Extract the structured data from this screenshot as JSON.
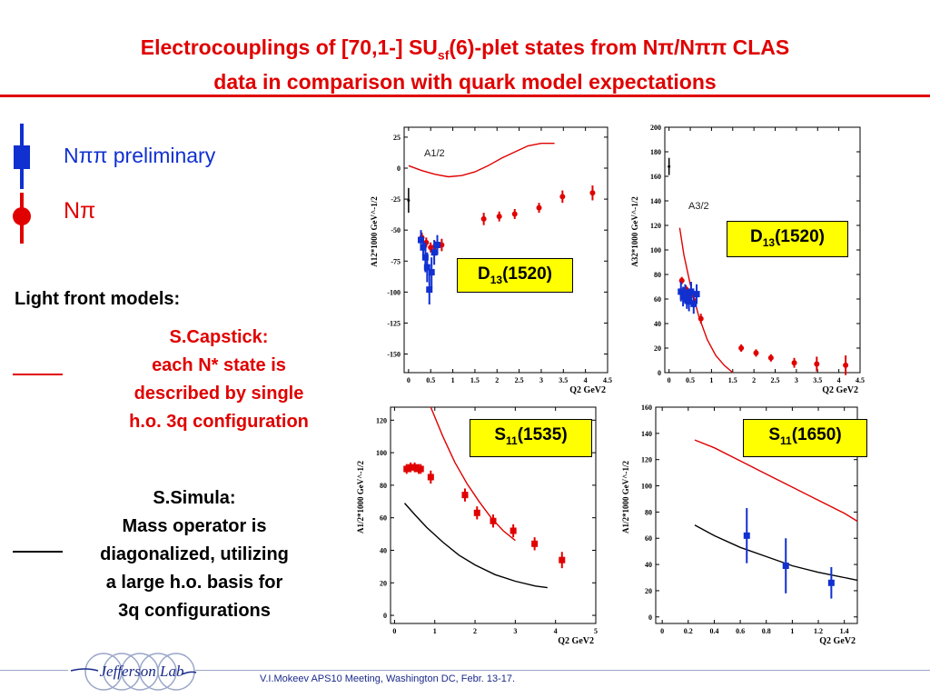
{
  "title": {
    "line1_a": "Electrocouplings of [70,1-] SU",
    "line1_sub": "sf",
    "line1_b": "(6)-plet states from Nπ/Nππ CLAS",
    "line2": "data in comparison with quark model expectations"
  },
  "legend": {
    "npipi": "Nππ preliminary",
    "npi": "Nπ"
  },
  "light_front": {
    "heading": "Light front models:",
    "capstick": [
      "S.Capstick:",
      "each N* state is",
      "described by single",
      "h.o. 3q configuration"
    ],
    "simula": [
      "S.Simula:",
      "Mass operator is",
      "diagonalized, utilizing",
      "a large h.o. basis for",
      "3q configurations"
    ]
  },
  "footer": {
    "text": "V.I.Mokeev   APS10 Meeting, Washington DC, Febr. 13-17.",
    "logo": "Jefferson Lab"
  },
  "colors": {
    "title": "#e00000",
    "npi": "#e00000",
    "npipi": "#1030d0",
    "model_capstick": "#e00000",
    "model_simula": "#000000",
    "state_box": "#ffff00"
  },
  "chart_data": [
    {
      "type": "scatter",
      "state_label": "D13(1520)",
      "state_name": "D",
      "state_sub": "13",
      "state_mass": "(1520)",
      "inset_label": "A1/2",
      "ylabel": "A12*1000 GeV^-1/2",
      "xlabel": "Q2 GeV2",
      "xlim": [
        -0.1,
        4.5
      ],
      "ylim": [
        -165,
        33
      ],
      "xticks": [
        0,
        0.5,
        1,
        1.5,
        2,
        2.5,
        3,
        3.5,
        4,
        4.5
      ],
      "xtick_labels": [
        "0",
        "0.5",
        "1",
        "1.5",
        "2",
        "2.5",
        "3",
        "3.5",
        "4",
        "4.5"
      ],
      "yticks": [
        25,
        0,
        -25,
        -50,
        -75,
        -100,
        -125,
        -150
      ],
      "ytick_labels": [
        "25",
        "0",
        "-25",
        "-50",
        "-75",
        "-100",
        "-125",
        "-150"
      ],
      "series": [
        {
          "name": "Nπ",
          "marker": "circle",
          "color": "#e00000",
          "points": [
            [
              0.3,
              -56,
              4
            ],
            [
              0.4,
              -60,
              4
            ],
            [
              0.5,
              -64,
              4
            ],
            [
              0.6,
              -63,
              4
            ],
            [
              0.75,
              -62,
              5
            ],
            [
              1.7,
              -41,
              5
            ],
            [
              2.05,
              -39,
              4
            ],
            [
              2.4,
              -37,
              4
            ],
            [
              2.95,
              -32,
              4
            ],
            [
              3.48,
              -23,
              5
            ],
            [
              4.16,
              -20,
              6
            ]
          ]
        },
        {
          "name": "Nππ",
          "marker": "square",
          "color": "#1030d0",
          "points": [
            [
              0.28,
              -58,
              8
            ],
            [
              0.33,
              -64,
              8
            ],
            [
              0.38,
              -72,
              12
            ],
            [
              0.42,
              -80,
              12
            ],
            [
              0.47,
              -98,
              12
            ],
            [
              0.52,
              -84,
              12
            ],
            [
              0.58,
              -68,
              10
            ],
            [
              0.65,
              -62,
              8
            ]
          ]
        },
        {
          "name": "",
          "marker": "dot",
          "color": "#000000",
          "points": [
            [
              0.0,
              -26,
              10
            ]
          ]
        }
      ],
      "curves": [
        {
          "name": "S.Capstick",
          "color": "#e00000",
          "x": [
            0,
            0.3,
            0.6,
            0.9,
            1.2,
            1.5,
            1.8,
            2.1,
            2.4,
            2.7,
            3.0,
            3.3
          ],
          "y": [
            2,
            -2,
            -5,
            -7,
            -6,
            -3,
            2,
            8,
            13,
            18,
            20,
            20
          ]
        }
      ]
    },
    {
      "type": "scatter",
      "state_label": "D13(1520)",
      "state_name": "D",
      "state_sub": "13",
      "state_mass": "(1520)",
      "inset_label": "A3/2",
      "ylabel": "A32*1000 GeV^-1/2",
      "xlabel": "Q2 GeV2",
      "xlim": [
        -0.1,
        4.5
      ],
      "ylim": [
        0,
        200
      ],
      "xticks": [
        0,
        0.5,
        1,
        1.5,
        2,
        2.5,
        3,
        3.5,
        4,
        4.5
      ],
      "xtick_labels": [
        "0",
        "0.5",
        "1",
        "1.5",
        "2",
        "2.5",
        "3",
        "3.5",
        "4",
        "4.5"
      ],
      "yticks": [
        0,
        20,
        40,
        60,
        80,
        100,
        120,
        140,
        160,
        180,
        200
      ],
      "ytick_labels": [
        "0",
        "20",
        "40",
        "60",
        "80",
        "100",
        "120",
        "140",
        "160",
        "180",
        "200"
      ],
      "series": [
        {
          "name": "Nπ",
          "marker": "circle",
          "color": "#e00000",
          "points": [
            [
              0.3,
              75,
              3
            ],
            [
              0.4,
              68,
              3
            ],
            [
              0.5,
              62,
              3
            ],
            [
              0.6,
              58,
              3
            ],
            [
              0.75,
              44,
              4
            ],
            [
              1.7,
              20,
              3
            ],
            [
              2.05,
              16,
              3
            ],
            [
              2.4,
              12,
              3
            ],
            [
              2.95,
              8,
              4
            ],
            [
              3.48,
              7,
              6
            ],
            [
              4.16,
              6,
              8
            ]
          ]
        },
        {
          "name": "Nππ",
          "marker": "square",
          "color": "#1030d0",
          "points": [
            [
              0.28,
              66,
              8
            ],
            [
              0.33,
              62,
              8
            ],
            [
              0.38,
              64,
              8
            ],
            [
              0.42,
              60,
              8
            ],
            [
              0.47,
              58,
              8
            ],
            [
              0.52,
              66,
              8
            ],
            [
              0.58,
              56,
              8
            ],
            [
              0.65,
              64,
              8
            ]
          ]
        },
        {
          "name": "",
          "marker": "dot",
          "color": "#000000",
          "points": [
            [
              0.0,
              168,
              7
            ]
          ]
        }
      ],
      "curves": [
        {
          "name": "S.Capstick",
          "color": "#e00000",
          "x": [
            0.25,
            0.35,
            0.5,
            0.7,
            0.9,
            1.1,
            1.3,
            1.5
          ],
          "y": [
            118,
            96,
            72,
            46,
            27,
            14,
            6,
            0
          ]
        }
      ]
    },
    {
      "type": "scatter",
      "state_label": "S11(1535)",
      "state_name": "S",
      "state_sub": "11",
      "state_mass": "(1535)",
      "inset_label": "",
      "ylabel": "A1/2*1000 GeV^-1/2",
      "xlabel": "Q2 GeV2",
      "xlim": [
        -0.1,
        5
      ],
      "ylim": [
        -5,
        128
      ],
      "xticks": [
        0,
        1,
        2,
        3,
        4,
        5
      ],
      "xtick_labels": [
        "0",
        "1",
        "2",
        "3",
        "4",
        "5"
      ],
      "yticks": [
        0,
        20,
        40,
        60,
        80,
        100,
        120
      ],
      "ytick_labels": [
        "0",
        "20",
        "40",
        "60",
        "80",
        "100",
        "120"
      ],
      "series": [
        {
          "name": "Nπ",
          "marker": "square",
          "color": "#e00000",
          "points": [
            [
              0.3,
              90,
              3
            ],
            [
              0.4,
              91,
              3
            ],
            [
              0.5,
              91,
              3
            ],
            [
              0.6,
              90,
              3
            ],
            [
              0.65,
              90,
              3
            ],
            [
              0.9,
              85,
              4
            ],
            [
              1.75,
              74,
              4
            ],
            [
              2.05,
              63,
              4
            ],
            [
              2.45,
              58,
              4
            ],
            [
              2.95,
              52,
              4
            ],
            [
              3.48,
              44,
              4
            ],
            [
              4.16,
              34,
              5
            ]
          ]
        }
      ],
      "curves": [
        {
          "name": "S.Capstick",
          "color": "#e00000",
          "x": [
            0.9,
            1.2,
            1.5,
            1.8,
            2.1,
            2.4,
            2.7,
            3.0
          ],
          "y": [
            128,
            110,
            94,
            81,
            70,
            60,
            52,
            46
          ]
        },
        {
          "name": "S.Simula",
          "color": "#000000",
          "x": [
            0.25,
            0.5,
            0.8,
            1.2,
            1.6,
            2.0,
            2.5,
            3.0,
            3.5,
            3.8
          ],
          "y": [
            69,
            62,
            54,
            45,
            37,
            31,
            25,
            21,
            18,
            17
          ]
        }
      ]
    },
    {
      "type": "scatter",
      "state_label": "S11(1650)",
      "state_name": "S",
      "state_sub": "11",
      "state_mass": "(1650)",
      "inset_label": "",
      "ylabel": "A1/2*1000 GeV^-1/2",
      "xlabel": "Q2 GeV2",
      "xlim": [
        -0.05,
        1.5
      ],
      "ylim": [
        -5,
        160
      ],
      "xticks": [
        0,
        0.2,
        0.4,
        0.6,
        0.8,
        1,
        1.2,
        1.4
      ],
      "xtick_labels": [
        "0",
        "0.2",
        "0.4",
        "0.6",
        "0.8",
        "1",
        "1.2",
        "1.4"
      ],
      "yticks": [
        0,
        20,
        40,
        60,
        80,
        100,
        120,
        140,
        160
      ],
      "ytick_labels": [
        "0",
        "20",
        "40",
        "60",
        "80",
        "100",
        "120",
        "140",
        "160"
      ],
      "series": [
        {
          "name": "Nππ",
          "marker": "square",
          "color": "#1030d0",
          "points": [
            [
              0.65,
              62,
              21
            ],
            [
              0.95,
              39,
              21
            ],
            [
              1.3,
              26,
              12
            ]
          ]
        }
      ],
      "curves": [
        {
          "name": "S.Capstick",
          "color": "#e00000",
          "x": [
            0.25,
            0.4,
            0.6,
            0.8,
            1.0,
            1.2,
            1.4,
            1.5
          ],
          "y": [
            135,
            129,
            119,
            109,
            99,
            89,
            79,
            73
          ]
        },
        {
          "name": "S.Simula",
          "color": "#000000",
          "x": [
            0.25,
            0.4,
            0.6,
            0.8,
            1.0,
            1.2,
            1.4,
            1.5
          ],
          "y": [
            70,
            62,
            53,
            46,
            39,
            34,
            30,
            28
          ]
        }
      ]
    }
  ]
}
